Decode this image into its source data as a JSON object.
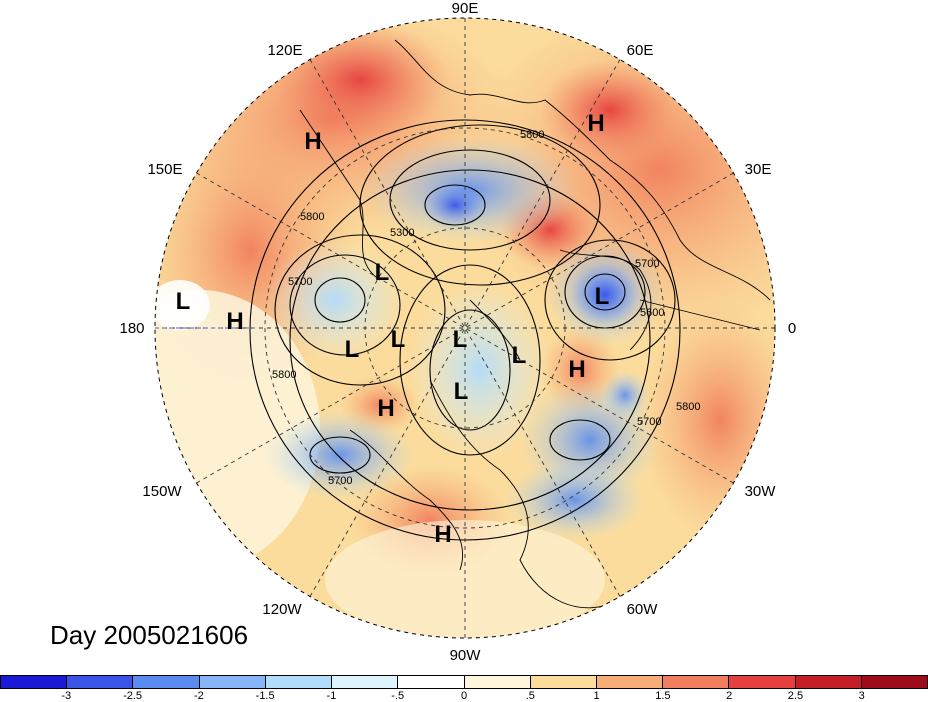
{
  "title": "Day 2005021606",
  "map": {
    "projection": "north-polar-stereographic",
    "longitude_labels": [
      "90E",
      "60E",
      "30E",
      "0",
      "30W",
      "60W",
      "90W",
      "120W",
      "150W",
      "180",
      "150E",
      "120E"
    ],
    "contour_labels": [
      "5800",
      "5300",
      "5700",
      "5600",
      "5700",
      "5800",
      "5700",
      "5800",
      "5700",
      "5800"
    ],
    "pressure_centers": [
      {
        "type": "H",
        "label": "H"
      },
      {
        "type": "H",
        "label": "H"
      },
      {
        "type": "L",
        "label": "L"
      },
      {
        "type": "L",
        "label": "L"
      },
      {
        "type": "H",
        "label": "H"
      },
      {
        "type": "L",
        "label": "L"
      },
      {
        "type": "L",
        "label": "L"
      },
      {
        "type": "L",
        "label": "L"
      },
      {
        "type": "L",
        "label": "L"
      },
      {
        "type": "L",
        "label": "L"
      },
      {
        "type": "H",
        "label": "H"
      },
      {
        "type": "L",
        "label": "L"
      },
      {
        "type": "H",
        "label": "H"
      },
      {
        "type": "H",
        "label": "H"
      }
    ],
    "colors": {
      "ocean_warm": "#f7cf9a",
      "neutral": "#fdf5dc",
      "grid": "#333333"
    }
  },
  "colorbar": {
    "labels": [
      "-3",
      "-2.5",
      "-2",
      "-1.5",
      "-1",
      "-.5",
      "0",
      ".5",
      "1",
      "1.5",
      "2",
      "2.5",
      "3"
    ],
    "colors": [
      "#1a1ad6",
      "#3a54e8",
      "#5a8cf0",
      "#86b6f7",
      "#b1dcfb",
      "#def4fc",
      "#ffffff",
      "#fdf5dc",
      "#fbdc9d",
      "#f6ad76",
      "#f17f5d",
      "#e6403e",
      "#c41f27",
      "#9e0c1c"
    ]
  }
}
